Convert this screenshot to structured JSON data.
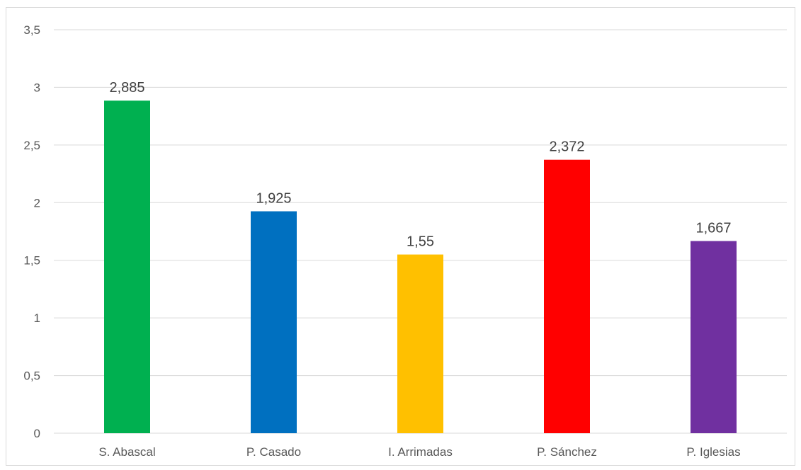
{
  "chart_data": {
    "type": "bar",
    "title": "",
    "xlabel": "",
    "ylabel": "",
    "categories": [
      "S. Abascal",
      "P. Casado",
      "I. Arrimadas",
      "P. Sánchez",
      "P. Iglesias"
    ],
    "values": [
      2.885,
      1.925,
      1.55,
      2.372,
      1.667
    ],
    "value_labels": [
      "2,885",
      "1,925",
      "1,55",
      "2,372",
      "1,667"
    ],
    "bar_colors": [
      "#00b050",
      "#0070c0",
      "#ffc000",
      "#ff0000",
      "#7030a0"
    ],
    "ylim": [
      0,
      3.5
    ],
    "y_ticks": [
      0,
      0.5,
      1,
      1.5,
      2,
      2.5,
      3,
      3.5
    ],
    "y_tick_labels": [
      "0",
      "0,5",
      "1",
      "1,5",
      "2",
      "2,5",
      "3",
      "3,5"
    ],
    "grid": true,
    "legend": "none"
  }
}
